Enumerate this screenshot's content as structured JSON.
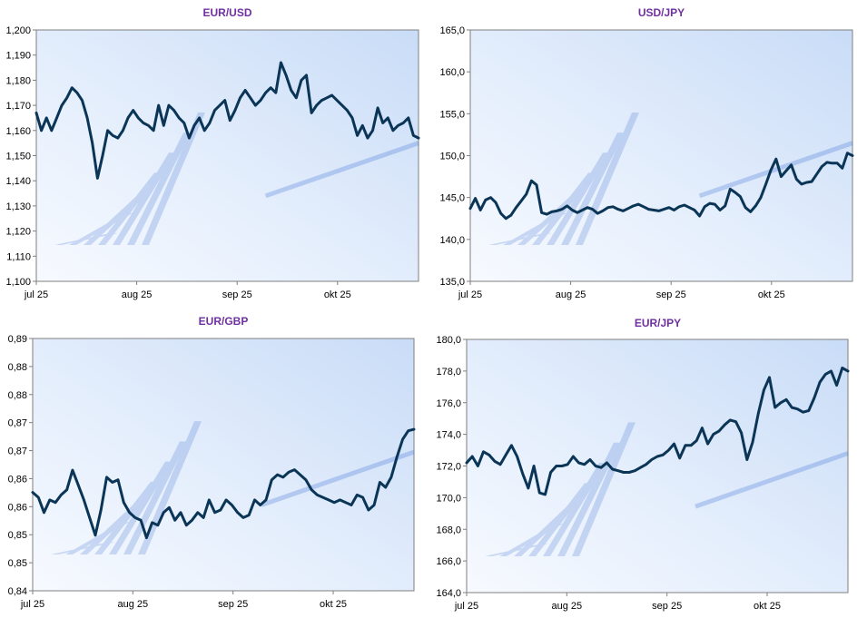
{
  "colors": {
    "line": "#0b3556",
    "title": "#7030a0",
    "frame": "#7f7f7f"
  },
  "chart_data": [
    {
      "type": "line",
      "title": "EUR/USD",
      "ylim": [
        1.1,
        1.2
      ],
      "yticks": [
        "1,100",
        "1,110",
        "1,120",
        "1,130",
        "1,140",
        "1,150",
        "1,160",
        "1,170",
        "1,180",
        "1,190",
        "1,200"
      ],
      "xticks": [
        "jul 25",
        "aug 25",
        "sep 25",
        "okt 25"
      ],
      "xlim": [
        0,
        118
      ],
      "xtick_pos": [
        0,
        31,
        62,
        93
      ],
      "series": [
        {
          "values": [
            1.167,
            1.16,
            1.165,
            1.16,
            1.165,
            1.17,
            1.173,
            1.177,
            1.175,
            1.172,
            1.165,
            1.155,
            1.141,
            1.15,
            1.16,
            1.158,
            1.157,
            1.16,
            1.165,
            1.168,
            1.165,
            1.163,
            1.162,
            1.16,
            1.17,
            1.162,
            1.17,
            1.168,
            1.165,
            1.163,
            1.157,
            1.162,
            1.165,
            1.16,
            1.163,
            1.168,
            1.17,
            1.172,
            1.164,
            1.168,
            1.173,
            1.176,
            1.173,
            1.17,
            1.172,
            1.175,
            1.177,
            1.175,
            1.187,
            1.182,
            1.176,
            1.173,
            1.18,
            1.182,
            1.167,
            1.17,
            1.172,
            1.173,
            1.174,
            1.172,
            1.17,
            1.168,
            1.165,
            1.158,
            1.162,
            1.157,
            1.16,
            1.169,
            1.163,
            1.165,
            1.16,
            1.162,
            1.163,
            1.165,
            1.158,
            1.157
          ]
        }
      ]
    },
    {
      "type": "line",
      "title": "USD/JPY",
      "ylim": [
        135.0,
        165.0
      ],
      "yticks": [
        "135,0",
        "140,0",
        "145,0",
        "150,0",
        "155,0",
        "160,0",
        "165,0"
      ],
      "xticks": [
        "jul 25",
        "aug 25",
        "sep 25",
        "okt 25"
      ],
      "xlim": [
        0,
        118
      ],
      "xtick_pos": [
        0,
        31,
        62,
        93
      ],
      "series": [
        {
          "values": [
            143.7,
            144.9,
            143.5,
            144.7,
            145.0,
            144.4,
            143.1,
            142.5,
            142.9,
            143.8,
            144.6,
            145.4,
            147.0,
            146.5,
            143.2,
            143.0,
            143.3,
            143.4,
            143.6,
            144.0,
            143.5,
            143.2,
            143.5,
            143.8,
            143.6,
            143.1,
            143.4,
            143.8,
            143.9,
            143.6,
            143.4,
            143.7,
            144.0,
            144.2,
            143.9,
            143.6,
            143.5,
            143.4,
            143.6,
            143.8,
            143.5,
            143.9,
            144.1,
            143.8,
            143.5,
            142.8,
            143.9,
            144.3,
            144.2,
            143.5,
            144.0,
            146.0,
            145.6,
            145.1,
            143.8,
            143.3,
            144.0,
            145.0,
            146.6,
            148.3,
            149.6,
            147.5,
            148.2,
            148.9,
            147.2,
            146.6,
            146.8,
            146.9,
            147.8,
            148.7,
            149.2,
            149.1,
            149.1,
            148.5,
            150.3,
            150.0
          ]
        }
      ]
    },
    {
      "type": "line",
      "title": "EUR/GBP",
      "ylim": [
        0.84,
        0.89
      ],
      "yticks": [
        "0,84",
        "0,85",
        "0,85",
        "0,86",
        "0,86",
        "0,87",
        "0,87",
        "0,88",
        "0,88",
        "0,89"
      ],
      "xticks": [
        "jul 25",
        "aug 25",
        "sep 25",
        "okt 25"
      ],
      "xlim": [
        0,
        118
      ],
      "xtick_pos": [
        0,
        31,
        62,
        93
      ],
      "series": [
        {
          "values": [
            0.8595,
            0.8585,
            0.8555,
            0.858,
            0.8575,
            0.859,
            0.86,
            0.8639,
            0.861,
            0.858,
            0.8545,
            0.851,
            0.856,
            0.8625,
            0.8615,
            0.862,
            0.8575,
            0.8555,
            0.8545,
            0.854,
            0.8505,
            0.8535,
            0.853,
            0.8555,
            0.8565,
            0.854,
            0.8555,
            0.853,
            0.854,
            0.8555,
            0.8545,
            0.858,
            0.8555,
            0.856,
            0.858,
            0.857,
            0.8555,
            0.8545,
            0.855,
            0.858,
            0.857,
            0.858,
            0.862,
            0.863,
            0.8625,
            0.8635,
            0.864,
            0.863,
            0.862,
            0.86,
            0.859,
            0.8585,
            0.858,
            0.8575,
            0.858,
            0.8575,
            0.857,
            0.859,
            0.8585,
            0.856,
            0.857,
            0.8615,
            0.8605,
            0.8625,
            0.8665,
            0.87,
            0.8717,
            0.872
          ]
        }
      ]
    },
    {
      "type": "line",
      "title": "EUR/JPY",
      "ylim": [
        164.0,
        180.0
      ],
      "yticks": [
        "164,0",
        "166,0",
        "168,0",
        "170,0",
        "172,0",
        "174,0",
        "176,0",
        "178,0",
        "180,0"
      ],
      "xticks": [
        "jul 25",
        "aug 25",
        "sep 25",
        "okt 25"
      ],
      "xlim": [
        0,
        118
      ],
      "xtick_pos": [
        0,
        31,
        62,
        93
      ],
      "series": [
        {
          "values": [
            172.2,
            172.6,
            172.0,
            172.9,
            172.7,
            172.3,
            172.1,
            172.7,
            173.3,
            172.6,
            171.5,
            170.6,
            172.0,
            170.3,
            170.2,
            171.6,
            172.0,
            172.0,
            172.1,
            172.6,
            172.2,
            172.1,
            172.4,
            172.0,
            171.9,
            172.2,
            171.8,
            171.7,
            171.6,
            171.6,
            171.7,
            171.9,
            172.1,
            172.4,
            172.6,
            172.7,
            173.0,
            173.4,
            172.5,
            173.3,
            173.3,
            173.6,
            174.4,
            173.4,
            174.0,
            174.2,
            174.6,
            174.9,
            174.8,
            174.1,
            172.4,
            173.5,
            175.3,
            176.8,
            177.6,
            175.7,
            176.0,
            176.2,
            175.7,
            175.6,
            175.4,
            175.5,
            176.3,
            177.3,
            177.8,
            178.0,
            177.1,
            178.2,
            178.0
          ]
        }
      ]
    }
  ]
}
